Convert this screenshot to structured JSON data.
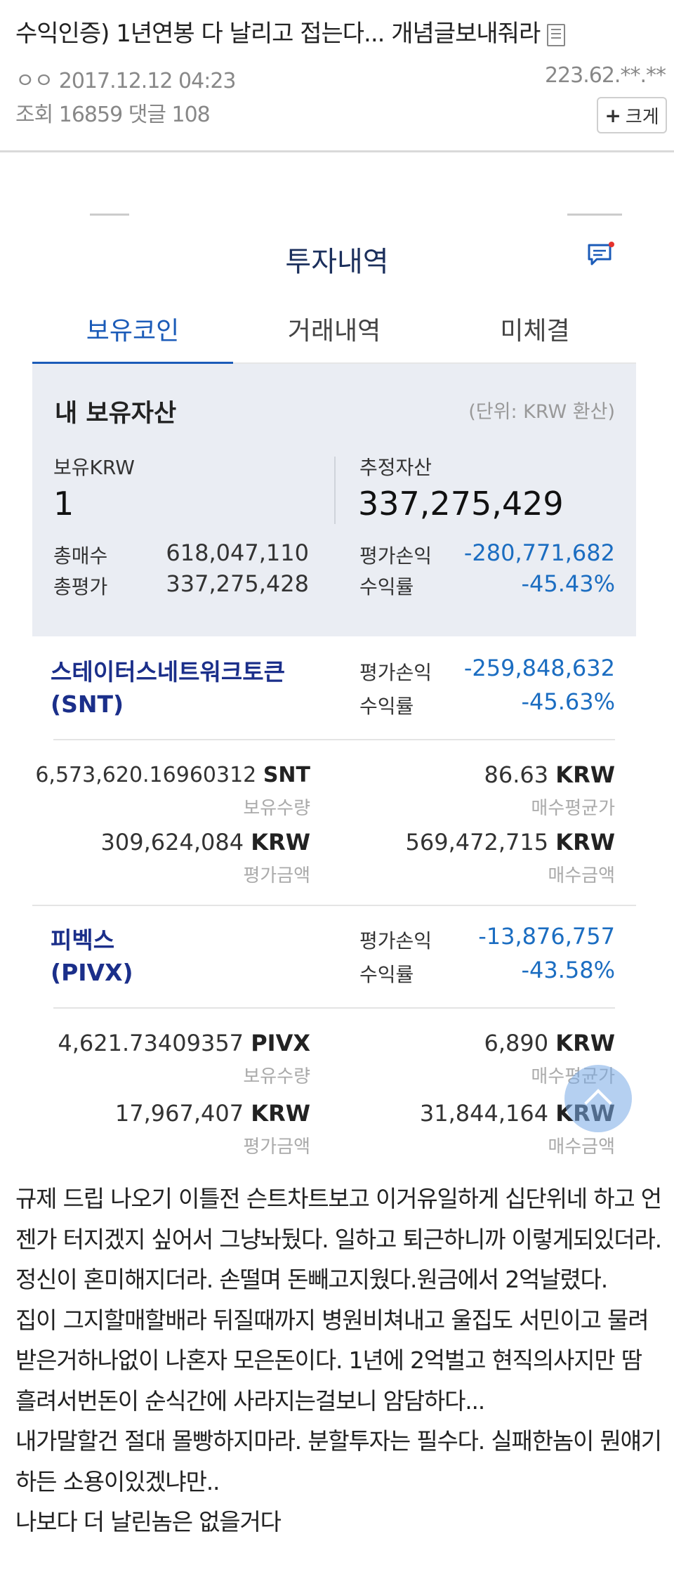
{
  "post": {
    "title": "수익인증) 1년연봉 다 날리고 접는다... 개념글보내줘라",
    "author": "ㅇㅇ",
    "datetime": "2017.12.12 04:23",
    "ip": "223.62.**.**",
    "views_label": "조회",
    "views": "16859",
    "comments_label": "댓글",
    "comments": "108",
    "size_button": "크게"
  },
  "app": {
    "title": "투자내역",
    "tabs": [
      "보유코인",
      "거래내역",
      "미체결"
    ],
    "assets": {
      "heading": "내 보유자산",
      "unit": "(단위: KRW 환산)",
      "krw_label": "보유KRW",
      "krw_value": "1",
      "estimated_label": "추정자산",
      "estimated_value": "337,275,429",
      "total_buy_label": "총매수",
      "total_buy": "618,047,110",
      "total_eval_label": "총평가",
      "total_eval": "337,275,428",
      "pnl_label": "평가손익",
      "pnl": "-280,771,682",
      "rate_label": "수익률",
      "rate": "-45.43%"
    },
    "coins": [
      {
        "name": "스테이터스네트워크토큰",
        "symbol": "(SNT)",
        "pnl_label": "평가손익",
        "pnl": "-259,848,632",
        "rate_label": "수익률",
        "rate": "-45.63%",
        "qty": "6,573,620.16960312",
        "qty_unit": "SNT",
        "qty_label": "보유수량",
        "avg": "86.63",
        "avg_unit": "KRW",
        "avg_label": "매수평균가",
        "eval": "309,624,084",
        "eval_unit": "KRW",
        "eval_label": "평가금액",
        "buy": "569,472,715",
        "buy_unit": "KRW",
        "buy_label": "매수금액"
      },
      {
        "name": "피벡스",
        "symbol": "(PIVX)",
        "pnl_label": "평가손익",
        "pnl": "-13,876,757",
        "rate_label": "수익률",
        "rate": "-43.58%",
        "qty": "4,621.73409357",
        "qty_unit": "PIVX",
        "qty_label": "보유수량",
        "avg": "6,890",
        "avg_unit": "KRW",
        "avg_label": "매수평균가",
        "eval": "17,967,407",
        "eval_unit": "KRW",
        "eval_label": "평가금액",
        "buy": "31,844,164",
        "buy_unit": "KRW",
        "buy_label": "매수금액"
      }
    ]
  },
  "body": [
    "규제 드립 나오기 이틀전 슨트차트보고 이거유일하게 십단위네 하고 언젠가 터지겠지 싶어서 그냥놔뒀다. 일하고 퇴근하니까 이렇게되있더라. 정신이 혼미해지더라. 손떨며 돈빼고지웠다.원금에서 2억날렸다.",
    "집이 그지할매할배라 뒤질때까지 병원비쳐내고 울집도 서민이고 물려받은거하나없이 나혼자 모은돈이다. 1년에 2억벌고 현직의사지만 땀흘려서번돈이 순식간에 사라지는걸보니 암담하다...",
    "내가말할건 절대 몰빵하지마라. 분할투자는 필수다. 실패한놈이 뭔얘기하든 소용이있겠냐만..",
    "나보다 더 날린놈은 없을거다"
  ],
  "colors": {
    "accent": "#1b5bb8",
    "negative": "#1b6dc1",
    "coin_name": "#1b2f8a"
  }
}
